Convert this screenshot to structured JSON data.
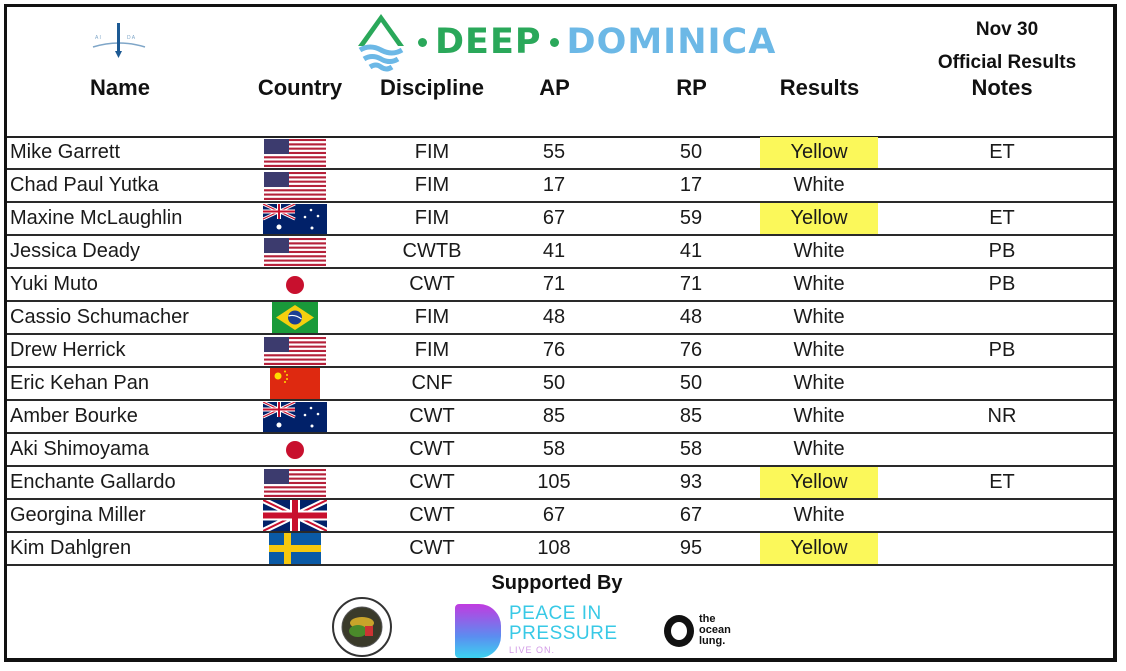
{
  "header": {
    "brand": {
      "part1": "DEEP",
      "part2": "DOMINICA",
      "color1": "#2aa85a",
      "color2": "#6cb8e6"
    },
    "date": "Nov 30",
    "subtitle": "Official Results",
    "logo_left": "aida-logo-icon",
    "columns": {
      "name": "Name",
      "country": "Country",
      "discipline": "Discipline",
      "ap": "AP",
      "rp": "RP",
      "results": "Results",
      "notes": "Notes"
    }
  },
  "rows": [
    {
      "name": "Mike Garrett",
      "country": "USA",
      "flag": "us",
      "discipline": "FIM",
      "ap": "55",
      "rp": "50",
      "result": "Yellow",
      "notes": "ET"
    },
    {
      "name": "Chad Paul Yutka",
      "country": "USA",
      "flag": "us",
      "discipline": "FIM",
      "ap": "17",
      "rp": "17",
      "result": "White",
      "notes": ""
    },
    {
      "name": "Maxine McLaughlin",
      "country": "Australia",
      "flag": "au",
      "discipline": "FIM",
      "ap": "67",
      "rp": "59",
      "result": "Yellow",
      "notes": "ET"
    },
    {
      "name": "Jessica Deady",
      "country": "USA",
      "flag": "us",
      "discipline": "CWTB",
      "ap": "41",
      "rp": "41",
      "result": "White",
      "notes": "PB"
    },
    {
      "name": "Yuki Muto",
      "country": "Japan",
      "flag": "jp",
      "discipline": "CWT",
      "ap": "71",
      "rp": "71",
      "result": "White",
      "notes": "PB"
    },
    {
      "name": "Cassio Schumacher",
      "country": "Brazil",
      "flag": "br",
      "discipline": "FIM",
      "ap": "48",
      "rp": "48",
      "result": "White",
      "notes": ""
    },
    {
      "name": "Drew Herrick",
      "country": "USA",
      "flag": "us",
      "discipline": "FIM",
      "ap": "76",
      "rp": "76",
      "result": "White",
      "notes": "PB"
    },
    {
      "name": "Eric Kehan Pan",
      "country": "China",
      "flag": "cn",
      "discipline": "CNF",
      "ap": "50",
      "rp": "50",
      "result": "White",
      "notes": ""
    },
    {
      "name": "Amber Bourke",
      "country": "Australia",
      "flag": "au",
      "discipline": "CWT",
      "ap": "85",
      "rp": "85",
      "result": "White",
      "notes": "NR"
    },
    {
      "name": "Aki Shimoyama",
      "country": "Japan",
      "flag": "jp",
      "discipline": "CWT",
      "ap": "58",
      "rp": "58",
      "result": "White",
      "notes": ""
    },
    {
      "name": "Enchante Gallardo",
      "country": "USA",
      "flag": "us",
      "discipline": "CWT",
      "ap": "105",
      "rp": "93",
      "result": "Yellow",
      "notes": "ET"
    },
    {
      "name": "Georgina Miller",
      "country": "United Kingdom",
      "flag": "gb",
      "discipline": "CWT",
      "ap": "67",
      "rp": "67",
      "result": "White",
      "notes": ""
    },
    {
      "name": "Kim Dahlgren",
      "country": "Sweden",
      "flag": "se",
      "discipline": "CWT",
      "ap": "108",
      "rp": "95",
      "result": "Yellow",
      "notes": ""
    }
  ],
  "colors": {
    "yellow_highlight": "#fbf85a"
  },
  "footer": {
    "supported_by": "Supported By",
    "sponsors": [
      {
        "name": "Nature Island Dive",
        "icon": "nature-island-dive-logo-icon"
      },
      {
        "name": "Peace In Pressure",
        "line1": "PEACE IN",
        "line2": "PRESSURE",
        "tagline": "LIVE ON."
      },
      {
        "name": "the ocean lung.",
        "line1": "the",
        "line2": "ocean",
        "line3": "lung."
      }
    ]
  }
}
